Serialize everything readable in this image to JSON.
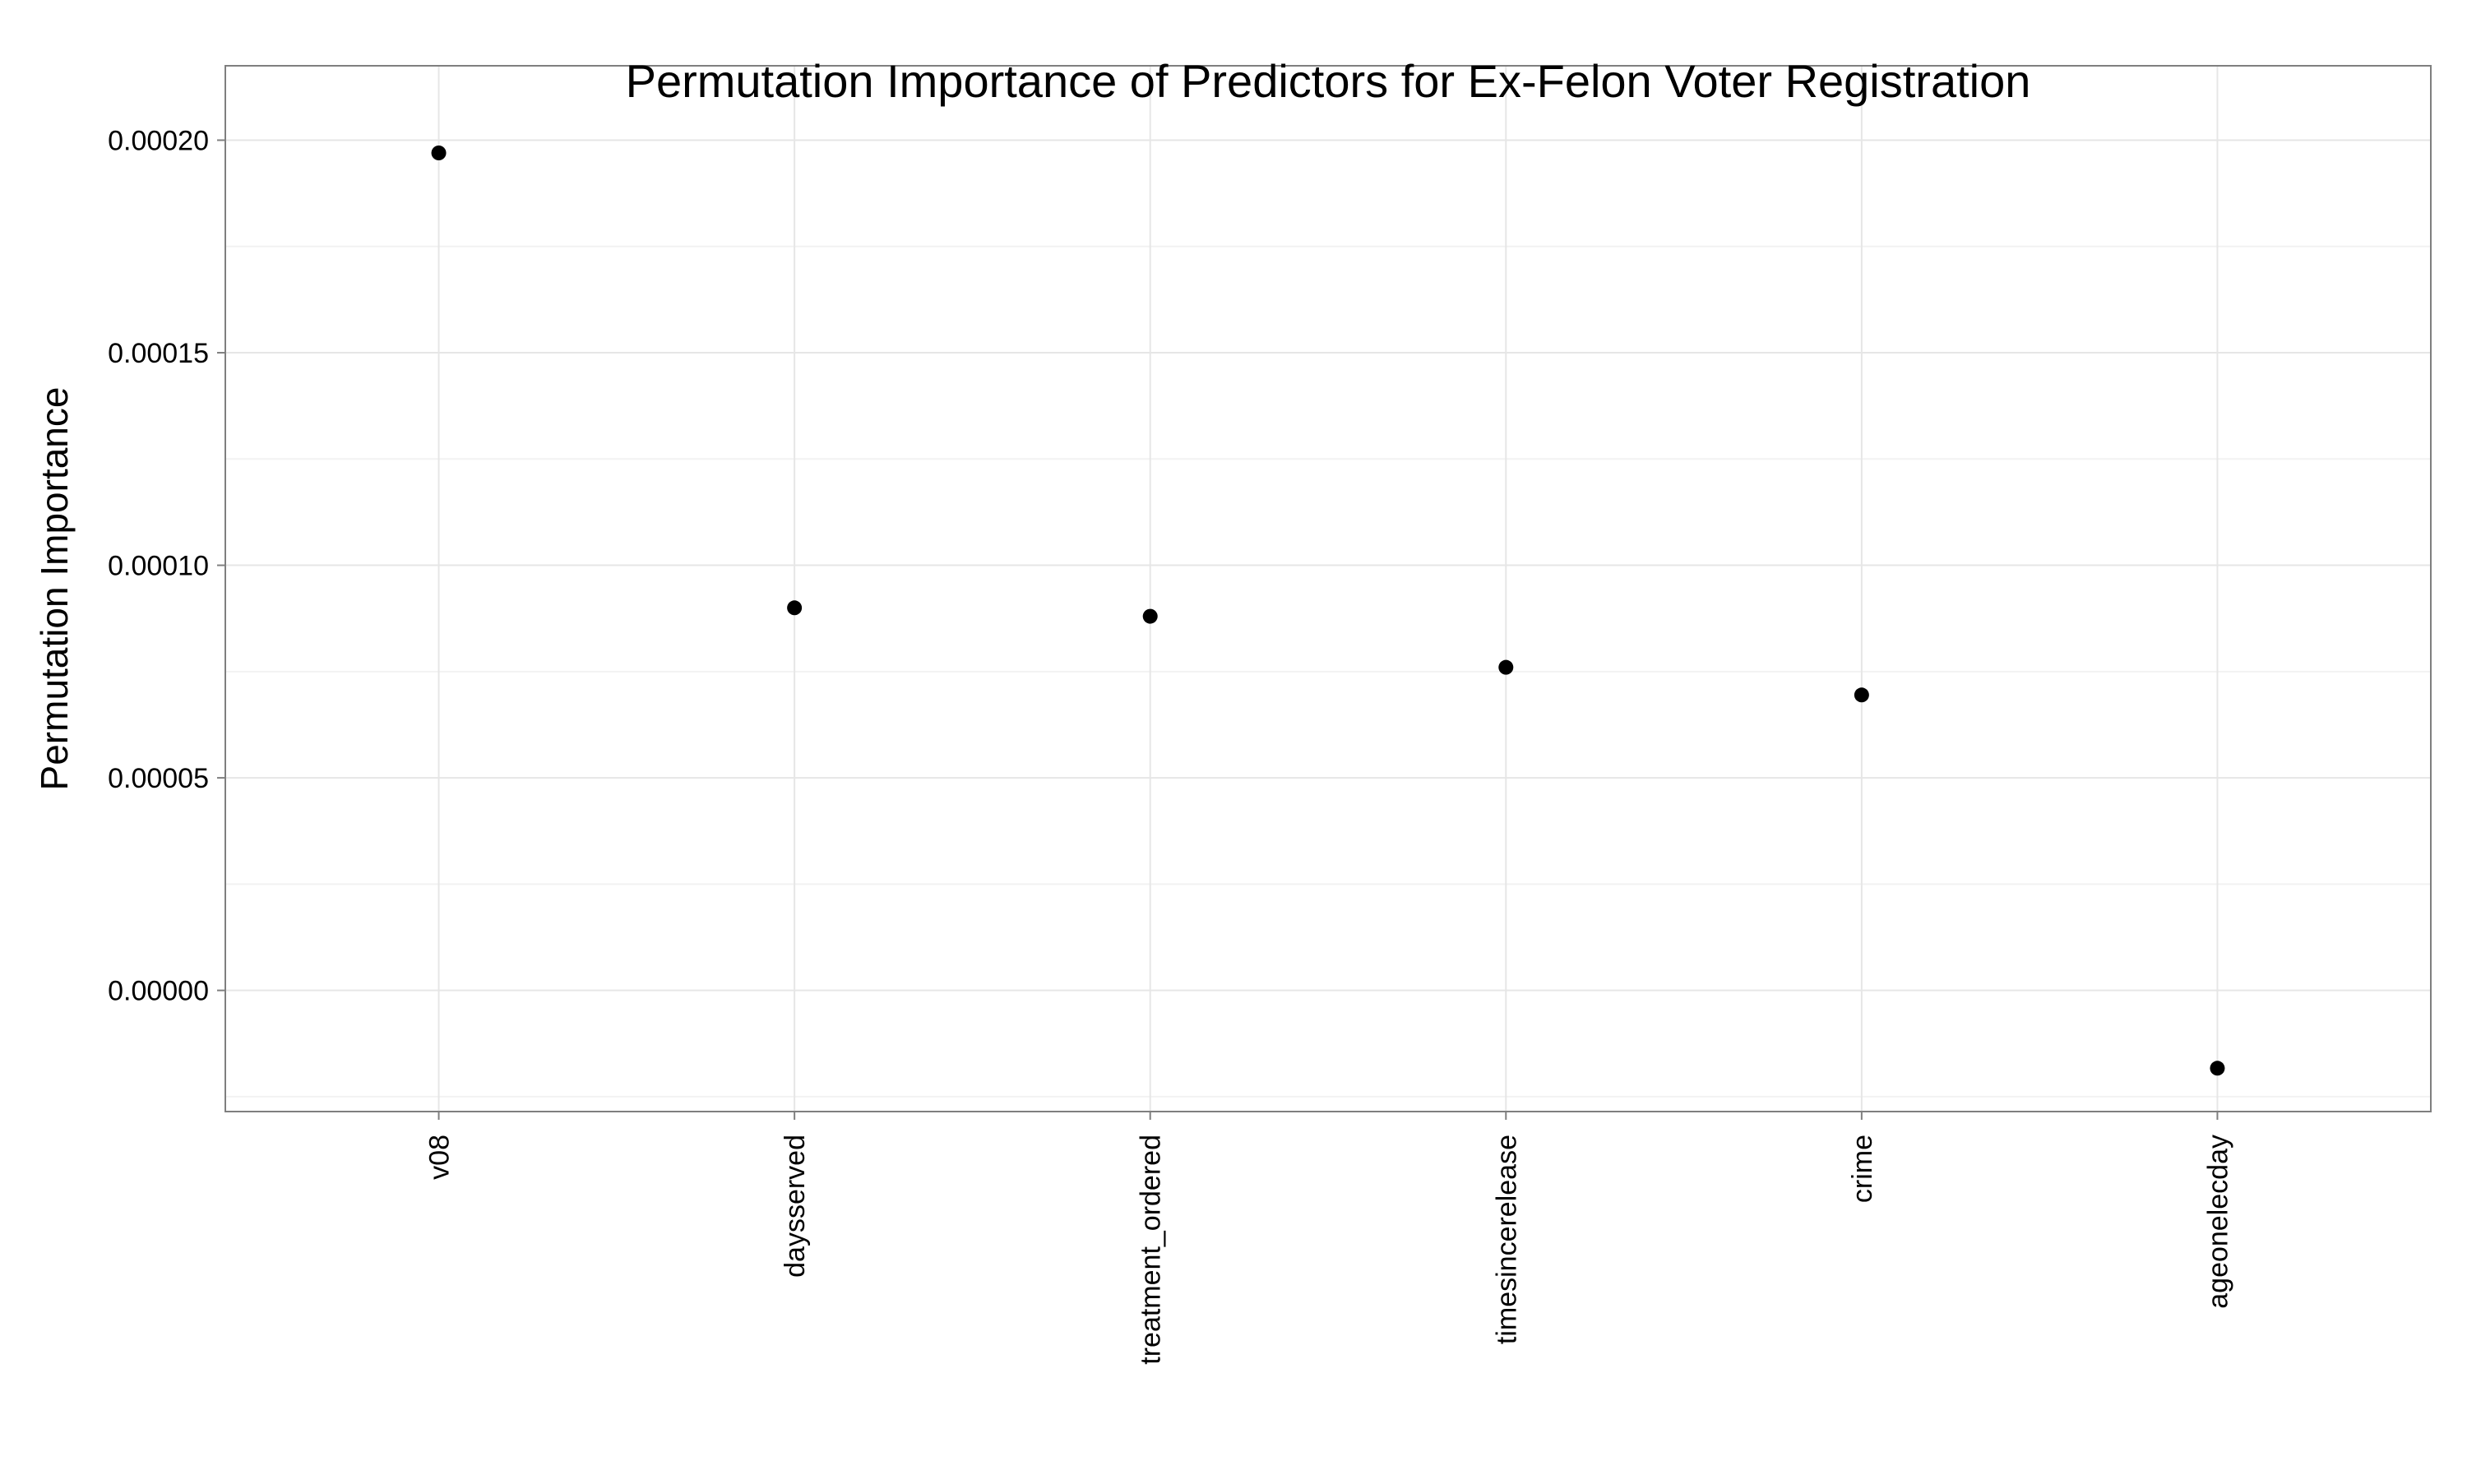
{
  "chart_data": {
    "type": "scatter",
    "title": "Permutation Importance of Predictors for Ex-Felon Voter Registration",
    "xlabel": "",
    "ylabel": "Permutation Importance",
    "categories": [
      "v08",
      "daysserved",
      "treatment_ordered",
      "timesincerelease",
      "crime",
      "ageonelecday"
    ],
    "values": [
      0.000197,
      9e-05,
      8.8e-05,
      7.6e-05,
      6.95e-05,
      -1.83e-05
    ],
    "ylim": [
      -2.85e-05,
      0.0002175
    ],
    "yticks": [
      0.0,
      5e-05,
      0.0001,
      0.00015,
      0.0002
    ],
    "ytick_labels": [
      "0.00000",
      "0.00005",
      "0.00010",
      "0.00015",
      "0.00020"
    ],
    "grid": true,
    "legend": "none",
    "colors": {
      "point": "#000000",
      "panel_border": "#7f7f7f",
      "grid_major": "#e6e6e6",
      "grid_minor": "#f2f2f2",
      "tick": "#7f7f7f"
    }
  }
}
